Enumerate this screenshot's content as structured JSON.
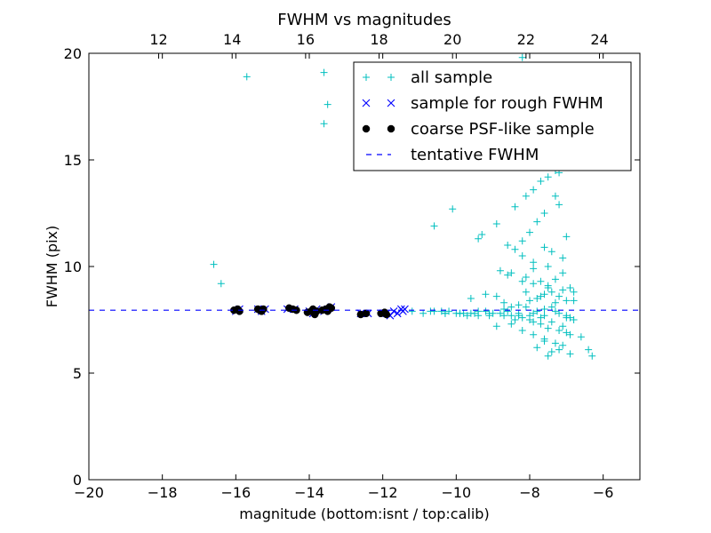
{
  "chart_data": {
    "type": "scatter",
    "title": "FWHM vs magnitudes",
    "xlabel": "magnitude (bottom:isnt / top:calib)",
    "ylabel": "FWHM (pix)",
    "xlim": [
      -20,
      -5
    ],
    "ylim": [
      0,
      20
    ],
    "x_ticks": [
      -20,
      -18,
      -16,
      -14,
      -12,
      -10,
      -8,
      -6
    ],
    "y_ticks": [
      0,
      5,
      10,
      15,
      20
    ],
    "x_tick_labels": [
      "−20",
      "−18",
      "−16",
      "−14",
      "−12",
      "−10",
      "−8",
      "−6"
    ],
    "y_tick_labels": [
      "0",
      "5",
      "10",
      "15",
      "20"
    ],
    "top_axis": {
      "offset": 30.1,
      "ticks": [
        12,
        14,
        16,
        18,
        20,
        22,
        24
      ],
      "tick_labels": [
        "12",
        "14",
        "16",
        "18",
        "20",
        "22",
        "24"
      ]
    },
    "legend_position": "top-right",
    "grid": false,
    "series": [
      {
        "name": "all sample",
        "marker": "plus",
        "color": "#00bfbf",
        "x": [
          -15.7,
          -16.6,
          -16.4,
          -13.6,
          -13.6,
          -13.5,
          -9.5,
          -8.8,
          -8.6,
          -8.2,
          -8.0,
          -7.9,
          -7.8,
          -8.5,
          -8.3,
          -7.6,
          -7.4,
          -7.7,
          -10.6,
          -10.1,
          -9.3,
          -8.9,
          -8.4,
          -8.1,
          -7.9,
          -7.7,
          -7.5,
          -7.3,
          -7.2,
          -7.0,
          -7.6,
          -7.8,
          -8.0,
          -8.2,
          -7.4,
          -7.1,
          -6.9,
          -7.5,
          -7.9,
          -8.6,
          -10.4,
          -9.9,
          -9.6,
          -9.2,
          -8.7,
          -8.3,
          -8.0,
          -7.8,
          -7.6,
          -7.4,
          -7.2,
          -7.0,
          -7.5,
          -7.7,
          -8.1,
          -8.5,
          -8.8,
          -9.4,
          -7.3,
          -7.9,
          -8.2,
          -8.4,
          -8.6,
          -7.6,
          -7.1,
          -6.8,
          -10.7,
          -10.3,
          -9.8,
          -9.4,
          -9.0,
          -8.6,
          -8.3,
          -8.0,
          -7.8,
          -7.6,
          -7.4,
          -7.2,
          -7.0,
          -6.9,
          -7.3,
          -7.7,
          -8.1,
          -8.5,
          -8.9,
          -7.5,
          -7.9,
          -8.2,
          -7.1,
          -6.8,
          -11.2,
          -10.9,
          -10.6,
          -10.3,
          -10.0,
          -9.7,
          -9.4,
          -9.1,
          -8.8,
          -8.5,
          -8.2,
          -7.9,
          -7.6,
          -7.3,
          -7.0,
          -6.8,
          -9.6,
          -9.2,
          -8.7,
          -8.1,
          -7.7,
          -7.4,
          -7.1,
          -10.2,
          -9.9,
          -9.5,
          -9.1,
          -8.7,
          -8.4,
          -8.0,
          -7.7,
          -7.5,
          -7.2,
          -7.0,
          -6.9,
          -7.6,
          -7.9,
          -8.3,
          -8.9,
          -8.5,
          -8.2,
          -7.9,
          -7.6,
          -7.3,
          -7.8,
          -7.1,
          -7.5,
          -7.4,
          -7.2,
          -6.9,
          -6.6,
          -6.4,
          -6.3,
          -7.8,
          -7.3,
          -7.0,
          -7.6,
          -7.8,
          -7.4,
          -7.2
        ],
        "y": [
          18.9,
          10.1,
          9.2,
          16.7,
          19.1,
          17.6,
          17.3,
          19.0,
          18.7,
          19.8,
          18.4,
          18.3,
          17.6,
          17.2,
          16.9,
          17.8,
          16.5,
          16.2,
          11.9,
          12.7,
          11.5,
          12.0,
          12.8,
          13.3,
          13.6,
          14.0,
          14.2,
          13.3,
          12.9,
          11.4,
          12.5,
          12.1,
          11.6,
          11.2,
          10.7,
          10.4,
          9.0,
          10.0,
          9.9,
          9.6,
          7.9,
          7.8,
          7.8,
          7.9,
          8.0,
          8.2,
          8.4,
          8.5,
          8.7,
          8.8,
          8.6,
          8.4,
          9.1,
          9.3,
          9.5,
          9.7,
          9.8,
          11.3,
          9.4,
          10.2,
          10.5,
          10.8,
          11.0,
          10.9,
          9.7,
          8.8,
          7.9,
          7.8,
          7.8,
          7.9,
          7.8,
          7.9,
          7.8,
          7.7,
          7.9,
          8.0,
          8.1,
          7.8,
          7.7,
          7.6,
          8.3,
          8.6,
          8.8,
          8.1,
          8.6,
          9.0,
          9.2,
          9.3,
          8.9,
          8.4,
          7.9,
          7.8,
          7.9,
          7.8,
          7.8,
          7.7,
          7.7,
          7.8,
          7.8,
          7.7,
          7.6,
          7.8,
          7.7,
          7.9,
          7.6,
          7.5,
          8.5,
          8.7,
          8.3,
          8.1,
          7.6,
          7.4,
          7.2,
          7.9,
          7.8,
          7.8,
          7.7,
          7.7,
          7.5,
          7.5,
          7.3,
          7.1,
          7.0,
          6.9,
          6.8,
          6.5,
          7.4,
          7.7,
          7.2,
          7.3,
          7.0,
          6.8,
          6.6,
          6.4,
          6.2,
          6.3,
          5.8,
          6.0,
          6.1,
          5.9,
          6.7,
          6.1,
          5.8,
          14.7,
          14.5,
          15.6,
          15.4,
          15.1,
          14.9,
          14.4
        ]
      },
      {
        "name": "sample for rough FWHM",
        "marker": "x",
        "color": "#0000ff",
        "x": [
          -16.0,
          -15.9,
          -15.4,
          -15.3,
          -15.2,
          -14.6,
          -14.4,
          -14.0,
          -13.9,
          -13.8,
          -13.6,
          -13.5,
          -13.4,
          -12.6,
          -12.4,
          -12.0,
          -11.9,
          -11.8,
          -11.7,
          -11.6,
          -11.5,
          -11.45,
          -11.4
        ],
        "y": [
          7.9,
          8.0,
          8.0,
          7.9,
          8.0,
          8.0,
          8.0,
          7.9,
          7.8,
          8.0,
          7.9,
          8.0,
          8.1,
          7.8,
          7.8,
          7.8,
          7.8,
          7.7,
          7.9,
          7.8,
          8.0,
          7.9,
          8.0
        ]
      },
      {
        "name": "coarse PSF-like sample",
        "marker": "circle",
        "color": "#000000",
        "x": [
          -16.05,
          -15.95,
          -15.9,
          -15.4,
          -15.35,
          -15.3,
          -15.25,
          -14.55,
          -14.45,
          -14.35,
          -14.05,
          -13.95,
          -13.9,
          -13.85,
          -13.8,
          -13.65,
          -13.55,
          -13.5,
          -13.45,
          -13.4,
          -12.6,
          -12.45,
          -12.05,
          -11.95,
          -11.9
        ],
        "y": [
          7.95,
          8.0,
          7.9,
          8.0,
          7.95,
          7.9,
          8.0,
          8.05,
          8.0,
          7.95,
          7.85,
          7.9,
          8.0,
          7.75,
          7.9,
          7.95,
          8.0,
          7.9,
          8.1,
          8.05,
          7.75,
          7.8,
          7.8,
          7.85,
          7.75
        ]
      },
      {
        "name": "tentative FWHM",
        "marker": "dashed-line",
        "color": "#0000ff",
        "x": [
          -20,
          -5
        ],
        "y": [
          7.95,
          7.95
        ]
      }
    ]
  }
}
